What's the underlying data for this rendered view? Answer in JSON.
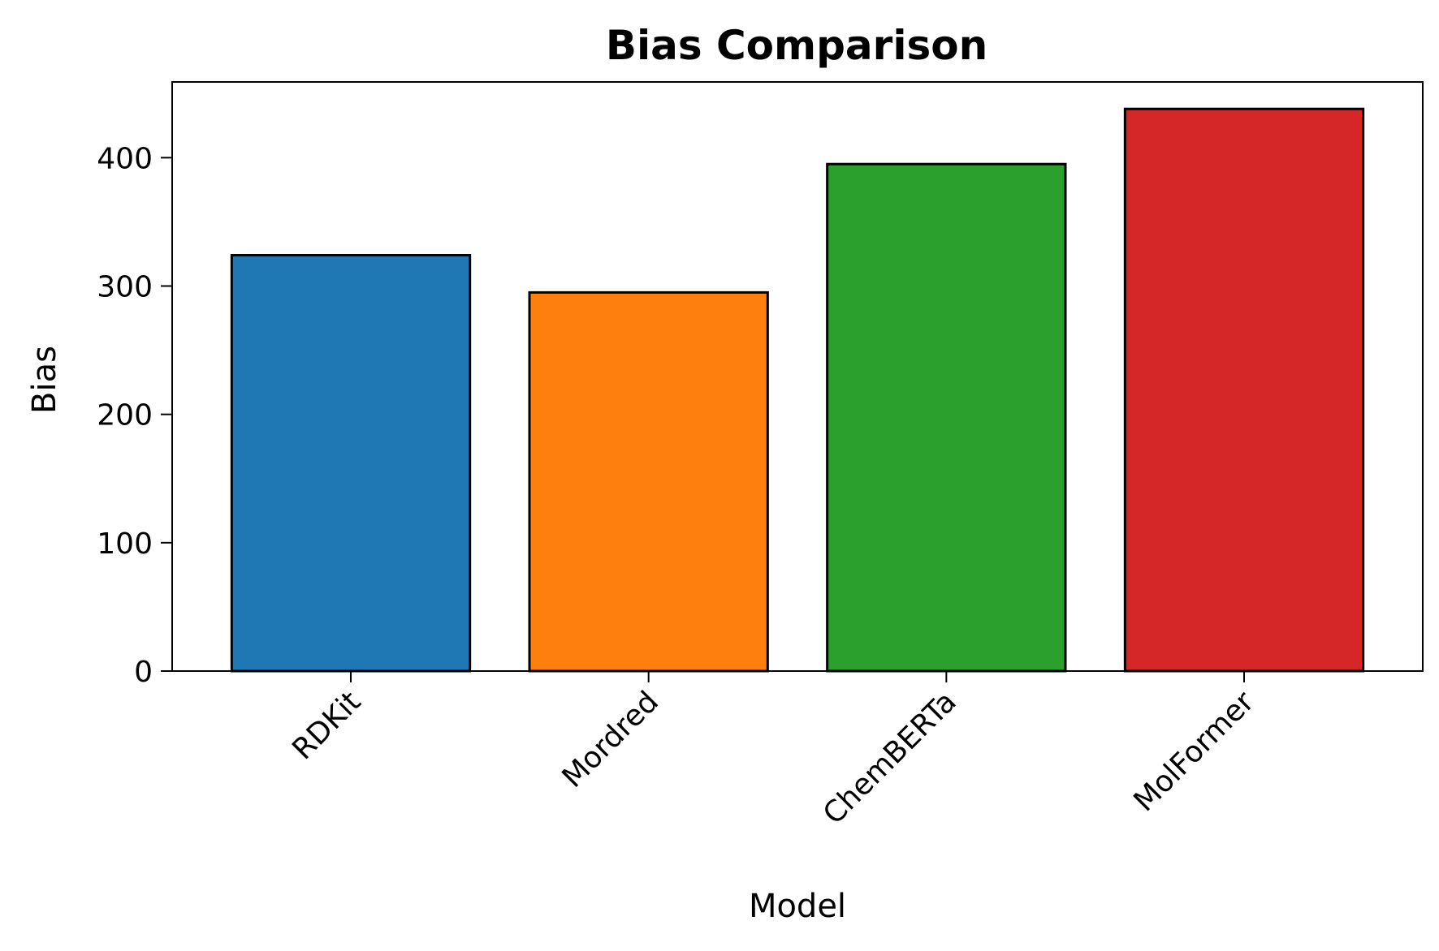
{
  "chart_data": {
    "type": "bar",
    "title": "Bias Comparison",
    "xlabel": "Model",
    "ylabel": "Bias",
    "categories": [
      "RDKit",
      "Mordred",
      "ChemBERTa",
      "MolFormer"
    ],
    "values": [
      324,
      295,
      395,
      438
    ],
    "colors": [
      "#1f77b4",
      "#ff7f0e",
      "#2ca02c",
      "#d62728"
    ],
    "ylim": [
      0,
      459
    ],
    "yticks": [
      0,
      100,
      200,
      300,
      400
    ],
    "grid": false,
    "legend": "none"
  }
}
